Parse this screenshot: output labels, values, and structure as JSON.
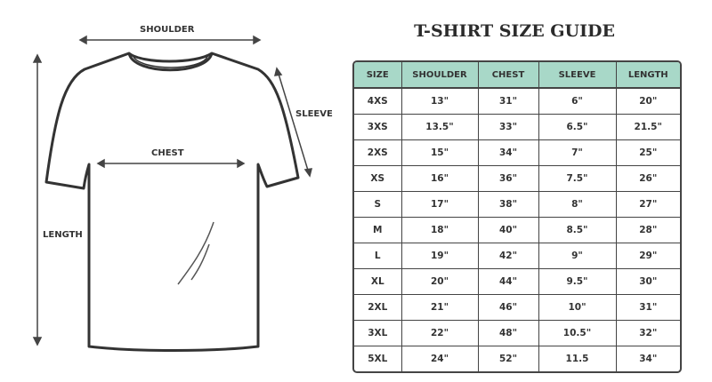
{
  "title": "T-SHIRT SIZE GUIDE",
  "diagram_labels": {
    "shoulder": "SHOULDER",
    "sleeve": "SLEEVE",
    "chest": "CHEST",
    "length": "LENGTH"
  },
  "table": {
    "headers": [
      "SIZE",
      "SHOULDER",
      "CHEST",
      "SLEEVE",
      "LENGTH"
    ],
    "rows": [
      [
        "4XS",
        "13\"",
        "31\"",
        "6\"",
        "20\""
      ],
      [
        "3XS",
        "13.5\"",
        "33\"",
        "6.5\"",
        "21.5\""
      ],
      [
        "2XS",
        "15\"",
        "34\"",
        "7\"",
        "25\""
      ],
      [
        "XS",
        "16\"",
        "36\"",
        "7.5\"",
        "26\""
      ],
      [
        "S",
        "17\"",
        "38\"",
        "8\"",
        "27\""
      ],
      [
        "M",
        "18\"",
        "40\"",
        "8.5\"",
        "28\""
      ],
      [
        "L",
        "19\"",
        "42\"",
        "9\"",
        "29\""
      ],
      [
        "XL",
        "20\"",
        "44\"",
        "9.5\"",
        "30\""
      ],
      [
        "2XL",
        "21\"",
        "46\"",
        "10\"",
        "31\""
      ],
      [
        "3XL",
        "22\"",
        "48\"",
        "10.5\"",
        "32\""
      ],
      [
        "5XL",
        "24\"",
        "52\"",
        "11.5",
        "34\""
      ]
    ]
  },
  "colors": {
    "header_bg": "#a8d8c8",
    "outline": "#444444"
  }
}
